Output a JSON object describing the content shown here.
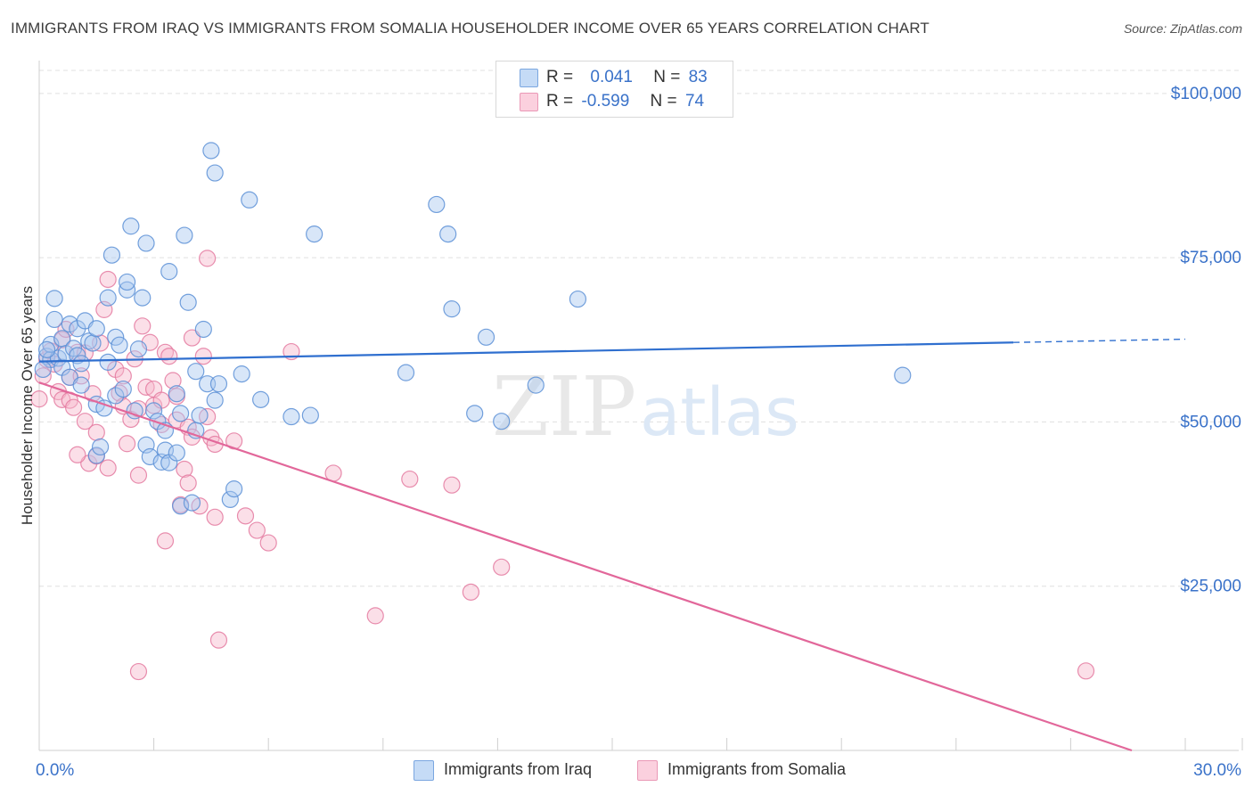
{
  "title": "IMMIGRANTS FROM IRAQ VS IMMIGRANTS FROM SOMALIA HOUSEHOLDER INCOME OVER 65 YEARS CORRELATION CHART",
  "source": "Source: ZipAtlas.com",
  "watermark": {
    "zip": "ZIP",
    "atlas": "atlas"
  },
  "legend": {
    "iraq": {
      "r_label": "R =",
      "r_value": "0.041",
      "n_label": "N =",
      "n_value": "83"
    },
    "somalia": {
      "r_label": "R =",
      "r_value": "-0.599",
      "n_label": "N =",
      "n_value": "74"
    }
  },
  "bottom_legend": {
    "iraq": "Immigrants from Iraq",
    "somalia": "Immigrants from Somalia"
  },
  "colors": {
    "iraq_fill": "#a9c8f0",
    "iraq_stroke": "#5b8fd6",
    "iraq_line": "#2f6fcf",
    "somalia_fill": "#f6b8cc",
    "somalia_stroke": "#e47aa0",
    "somalia_line": "#e2679a",
    "axis_text": "#3a72c9",
    "grid": "#e0e0e0"
  },
  "chart_data": {
    "type": "scatter",
    "title": "IMMIGRANTS FROM IRAQ VS IMMIGRANTS FROM SOMALIA HOUSEHOLDER INCOME OVER 65 YEARS CORRELATION CHART",
    "xlabel": "",
    "ylabel": "Householder Income Over 65 years",
    "xlim": [
      0,
      30
    ],
    "ylim": [
      0,
      105000
    ],
    "x_tick_labels": [
      {
        "value": 0,
        "label": "0.0%"
      },
      {
        "value": 30,
        "label": "30.0%"
      }
    ],
    "y_ticks": [
      {
        "value": 25000,
        "label": "$25,000"
      },
      {
        "value": 50000,
        "label": "$50,000"
      },
      {
        "value": 75000,
        "label": "$75,000"
      },
      {
        "value": 100000,
        "label": "$100,000"
      }
    ],
    "series": [
      {
        "name": "Immigrants from Iraq",
        "r": 0.041,
        "n": 83,
        "trend": {
          "x0": 0,
          "y0": 59200,
          "x1": 25.5,
          "y1": 62100,
          "dashed_to_x": 30,
          "dashed_to_y": 62600
        },
        "points": [
          [
            0.2,
            60000
          ],
          [
            0.3,
            59500
          ],
          [
            0.3,
            61800
          ],
          [
            0.4,
            68800
          ],
          [
            0.4,
            65600
          ],
          [
            0.5,
            59700
          ],
          [
            0.6,
            58300
          ],
          [
            0.6,
            62700
          ],
          [
            0.7,
            60400
          ],
          [
            0.8,
            64900
          ],
          [
            0.8,
            56800
          ],
          [
            0.9,
            61200
          ],
          [
            1.0,
            64200
          ],
          [
            1.0,
            60100
          ],
          [
            1.1,
            55600
          ],
          [
            1.1,
            58900
          ],
          [
            1.2,
            65400
          ],
          [
            1.3,
            62300
          ],
          [
            1.4,
            62000
          ],
          [
            1.5,
            64200
          ],
          [
            1.5,
            52700
          ],
          [
            1.5,
            44900
          ],
          [
            1.6,
            46200
          ],
          [
            1.7,
            52100
          ],
          [
            1.8,
            68900
          ],
          [
            1.8,
            59100
          ],
          [
            1.9,
            75400
          ],
          [
            2.0,
            54000
          ],
          [
            2.0,
            62900
          ],
          [
            2.1,
            61700
          ],
          [
            2.2,
            55000
          ],
          [
            2.3,
            70100
          ],
          [
            2.3,
            71300
          ],
          [
            2.4,
            79800
          ],
          [
            2.5,
            51700
          ],
          [
            2.6,
            61100
          ],
          [
            2.7,
            68900
          ],
          [
            2.8,
            46500
          ],
          [
            2.8,
            77200
          ],
          [
            2.9,
            44700
          ],
          [
            3.0,
            51700
          ],
          [
            3.1,
            50100
          ],
          [
            3.2,
            43900
          ],
          [
            3.3,
            45700
          ],
          [
            3.3,
            48700
          ],
          [
            3.4,
            43800
          ],
          [
            3.4,
            72900
          ],
          [
            3.6,
            54300
          ],
          [
            3.6,
            45300
          ],
          [
            3.7,
            37200
          ],
          [
            3.7,
            51300
          ],
          [
            3.8,
            78400
          ],
          [
            3.9,
            68200
          ],
          [
            4.0,
            37700
          ],
          [
            4.1,
            57700
          ],
          [
            4.1,
            48700
          ],
          [
            4.2,
            51000
          ],
          [
            4.3,
            64100
          ],
          [
            4.4,
            55800
          ],
          [
            4.5,
            91300
          ],
          [
            4.6,
            53300
          ],
          [
            4.6,
            87900
          ],
          [
            4.7,
            55800
          ],
          [
            5.0,
            38200
          ],
          [
            5.1,
            39800
          ],
          [
            5.3,
            57300
          ],
          [
            5.5,
            83800
          ],
          [
            5.8,
            53400
          ],
          [
            6.6,
            50800
          ],
          [
            7.1,
            51000
          ],
          [
            7.2,
            78600
          ],
          [
            9.6,
            57500
          ],
          [
            10.4,
            83100
          ],
          [
            10.7,
            78600
          ],
          [
            10.8,
            67200
          ],
          [
            11.4,
            51300
          ],
          [
            11.7,
            62900
          ],
          [
            12.1,
            50100
          ],
          [
            13.0,
            55600
          ],
          [
            14.1,
            68700
          ],
          [
            22.6,
            57100
          ],
          [
            0.1,
            58000
          ],
          [
            0.2,
            61000
          ]
        ]
      },
      {
        "name": "Immigrants from Somalia",
        "r": -0.599,
        "n": 74,
        "trend": {
          "x0": 0,
          "y0": 56000,
          "x1": 28.6,
          "y1": 0
        },
        "points": [
          [
            0.0,
            53500
          ],
          [
            0.1,
            57000
          ],
          [
            0.2,
            59500
          ],
          [
            0.3,
            60800
          ],
          [
            0.4,
            58800
          ],
          [
            0.5,
            54600
          ],
          [
            0.6,
            53400
          ],
          [
            0.6,
            62500
          ],
          [
            0.7,
            64100
          ],
          [
            0.8,
            56800
          ],
          [
            0.8,
            53300
          ],
          [
            0.9,
            52200
          ],
          [
            1.0,
            60600
          ],
          [
            1.1,
            57000
          ],
          [
            1.2,
            60500
          ],
          [
            1.2,
            50100
          ],
          [
            1.3,
            43700
          ],
          [
            1.4,
            54300
          ],
          [
            1.5,
            48400
          ],
          [
            1.5,
            44800
          ],
          [
            1.6,
            62000
          ],
          [
            1.7,
            67100
          ],
          [
            1.8,
            43000
          ],
          [
            1.8,
            71700
          ],
          [
            2.0,
            58000
          ],
          [
            2.1,
            54400
          ],
          [
            2.2,
            52400
          ],
          [
            2.2,
            57000
          ],
          [
            2.3,
            46700
          ],
          [
            2.4,
            50400
          ],
          [
            2.5,
            59600
          ],
          [
            2.6,
            52000
          ],
          [
            2.6,
            41900
          ],
          [
            2.7,
            64600
          ],
          [
            2.8,
            55300
          ],
          [
            2.9,
            62100
          ],
          [
            3.0,
            52500
          ],
          [
            3.0,
            55000
          ],
          [
            3.2,
            53300
          ],
          [
            3.2,
            49600
          ],
          [
            3.3,
            60600
          ],
          [
            3.3,
            31900
          ],
          [
            3.4,
            60000
          ],
          [
            3.5,
            56300
          ],
          [
            3.6,
            50300
          ],
          [
            3.6,
            53900
          ],
          [
            3.7,
            37400
          ],
          [
            3.8,
            42800
          ],
          [
            3.9,
            49200
          ],
          [
            3.9,
            40700
          ],
          [
            4.0,
            47700
          ],
          [
            4.0,
            62800
          ],
          [
            4.2,
            37200
          ],
          [
            4.3,
            60000
          ],
          [
            4.4,
            50800
          ],
          [
            4.4,
            74900
          ],
          [
            4.5,
            47600
          ],
          [
            4.6,
            46600
          ],
          [
            4.6,
            35500
          ],
          [
            4.7,
            16800
          ],
          [
            5.1,
            47100
          ],
          [
            5.4,
            35700
          ],
          [
            5.7,
            33500
          ],
          [
            6.0,
            31600
          ],
          [
            6.6,
            60700
          ],
          [
            7.7,
            42200
          ],
          [
            8.8,
            20500
          ],
          [
            9.7,
            41300
          ],
          [
            10.8,
            40400
          ],
          [
            11.3,
            24100
          ],
          [
            12.1,
            27900
          ],
          [
            27.4,
            12100
          ],
          [
            2.6,
            12000
          ],
          [
            1.0,
            45000
          ]
        ]
      }
    ]
  }
}
